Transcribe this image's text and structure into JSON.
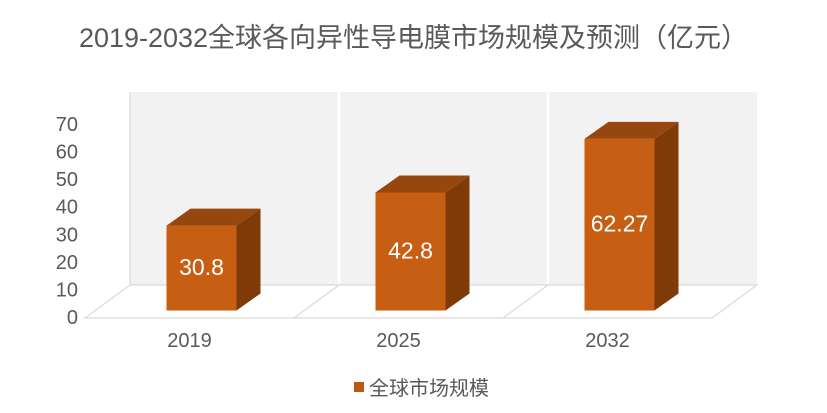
{
  "title": "2019-2032全球各向异性导电膜市场规模及预测（亿元）",
  "legend": {
    "position": "bottom",
    "items": [
      {
        "label": "全球市场规模",
        "color": "#BE5712"
      }
    ]
  },
  "chart_data": {
    "type": "bar",
    "variant": "3d-column",
    "title": "2019-2032全球各向异性导电膜市场规模及预测（亿元）",
    "categories": [
      "2019",
      "2025",
      "2032"
    ],
    "series": [
      {
        "name": "全球市场规模",
        "values": [
          30.8,
          42.8,
          62.27
        ],
        "data_labels": [
          "30.8",
          "42.8",
          "62.27"
        ]
      }
    ],
    "xlabel": "",
    "ylabel": "",
    "ylim": [
      0,
      70
    ],
    "yticks": [
      0,
      10,
      20,
      30,
      40,
      50,
      60,
      70
    ],
    "grid": "vertical-category-separators-on-wall-and-floor",
    "legend_position": "bottom",
    "colors": {
      "bar_front": "#C65F13",
      "bar_top": "#96470E",
      "bar_side": "#7E3B08",
      "wall": "#F2F2F2",
      "floor": "#FFFFFF",
      "outline": "#D9D9D9",
      "separator": "#FFFFFF",
      "axis_text": "#595959",
      "title_text": "#595959",
      "value_label_text": "#FFFFFF"
    }
  }
}
